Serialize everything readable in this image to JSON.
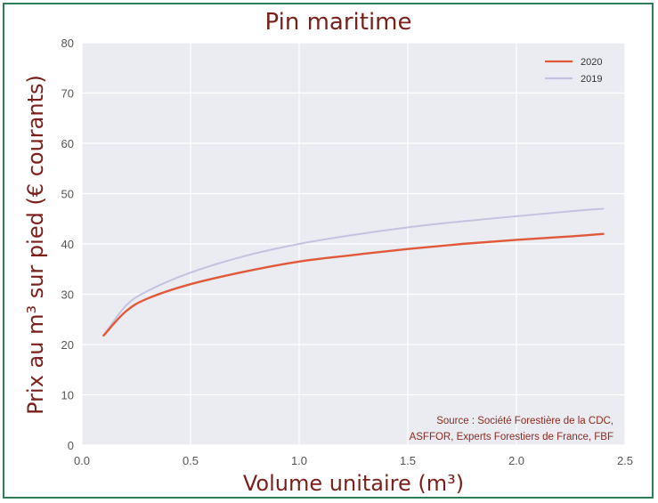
{
  "chart_data": {
    "type": "line",
    "title": "Pin maritime",
    "xlabel": "Volume unitaire (m³)",
    "ylabel": "Prix au m³ sur pied (€ courants)",
    "xlim": [
      0.0,
      2.5
    ],
    "ylim": [
      0,
      80
    ],
    "x_ticks": [
      "0.0",
      "0.5",
      "1.0",
      "1.5",
      "2.0",
      "2.5"
    ],
    "y_ticks": [
      "0",
      "10",
      "20",
      "30",
      "40",
      "50",
      "60",
      "70",
      "80"
    ],
    "grid": true,
    "legend_position": "top-right",
    "x": [
      0.1,
      0.2,
      0.3,
      0.5,
      0.75,
      1.0,
      1.25,
      1.5,
      1.75,
      2.0,
      2.25,
      2.4
    ],
    "series": [
      {
        "name": "2020",
        "color": "#e05a3a",
        "values": [
          21.8,
          26.5,
          29.1,
          32.0,
          34.5,
          36.5,
          37.8,
          39.0,
          40.0,
          40.8,
          41.5,
          42.0
        ]
      },
      {
        "name": "2019",
        "color": "#c3c3e0",
        "values": [
          21.8,
          27.6,
          30.6,
          34.3,
          37.6,
          40.0,
          41.8,
          43.3,
          44.5,
          45.5,
          46.5,
          47.0
        ]
      }
    ],
    "annotation": {
      "line1": "Source : Société Forestière de la CDC,",
      "line2": "ASFFOR, Experts Forestiers de France, FBF"
    }
  }
}
